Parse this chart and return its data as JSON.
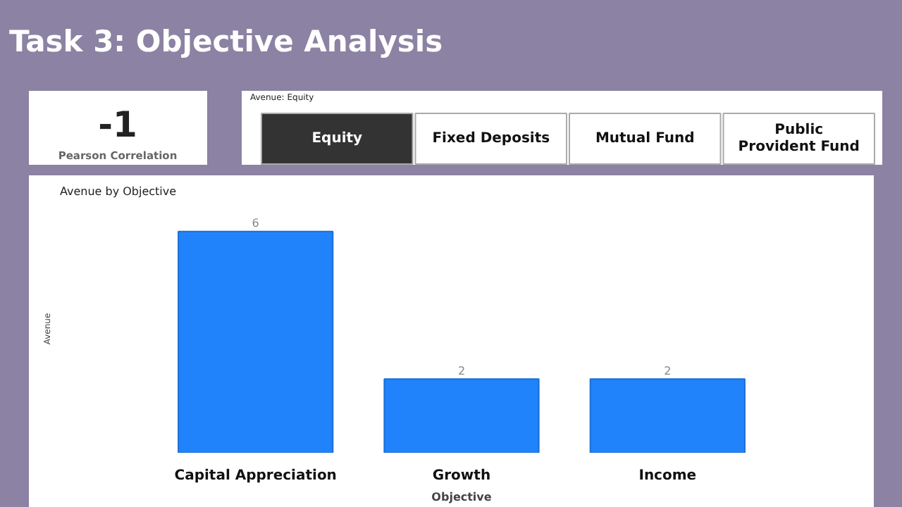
{
  "chart_data": [
    {
      "type": "other",
      "title": "Task 3: Objective Analysis"
    },
    {
      "type": "other",
      "title": "-1",
      "subtitle": "Pearson Correlation"
    },
    {
      "type": "other",
      "title": "Avenue: Equity",
      "categories": [
        "Equity",
        "Fixed Deposits",
        "Mutual Fund",
        "Public Provident Fund"
      ],
      "colors": [
        "#333333",
        "#ffffff",
        "#ffffff",
        "#ffffff"
      ]
    },
    {
      "type": "bar",
      "title": "Avenue by Objective",
      "xlabel": "Objective",
      "ylabel": "Avenue",
      "categories": [
        "Capital Appreciation",
        "Growth",
        "Income"
      ],
      "values": [
        6,
        2,
        2
      ],
      "color": "#2083fb",
      "data_labels": true,
      "grid": false
    }
  ]
}
